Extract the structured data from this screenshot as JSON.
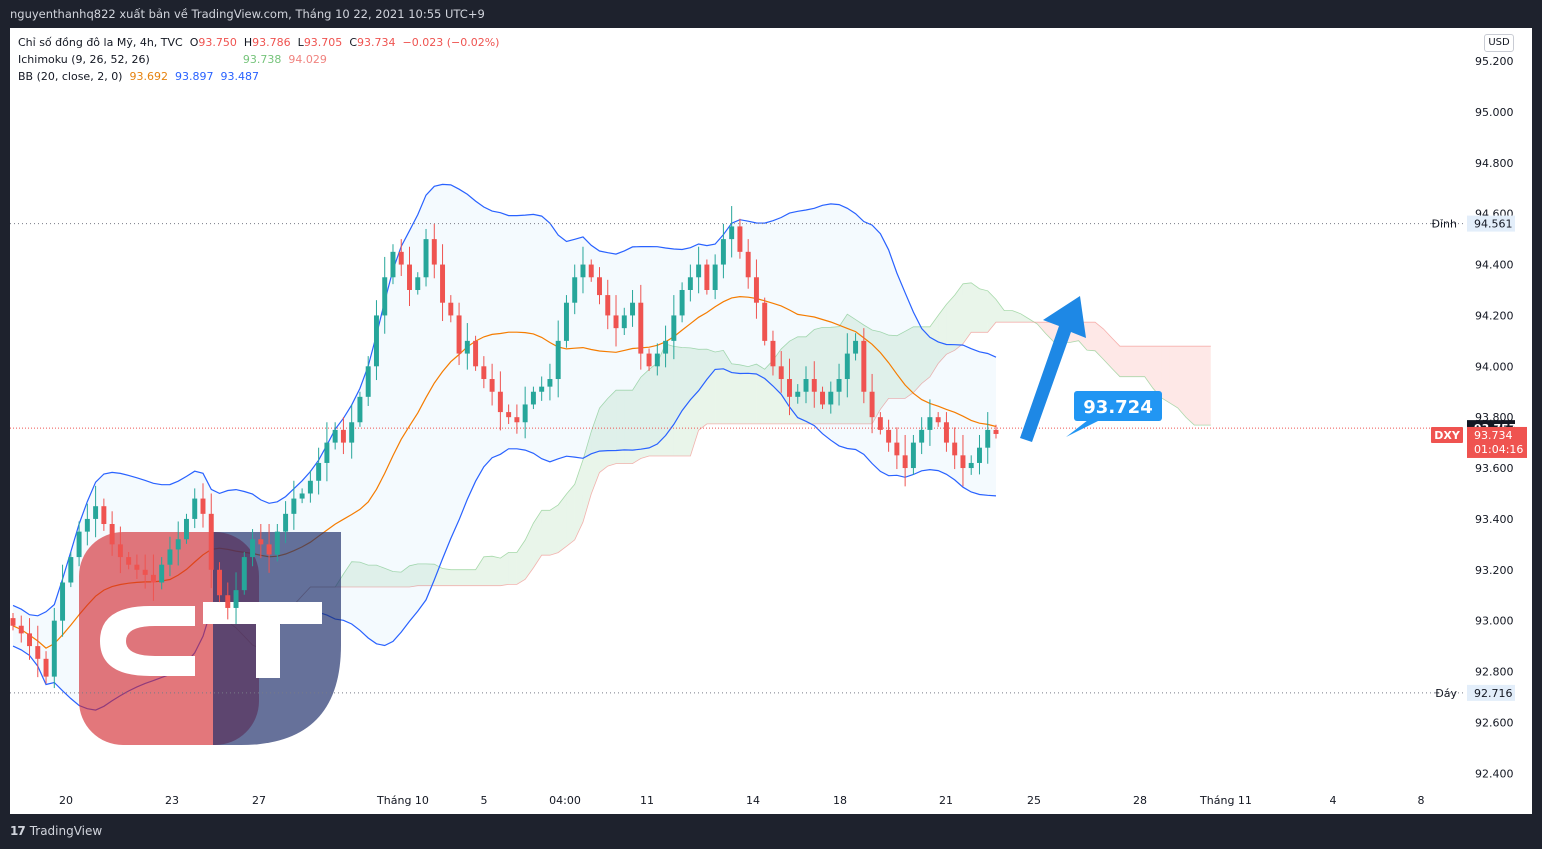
{
  "header": {
    "published_by": "nguyenthanhq822 xuất bản về TradingView.com, Tháng 10 22, 2021 10:55 UTC+9"
  },
  "legend": {
    "symbol": "Chỉ số đồng đô la Mỹ, 4h, TVC",
    "o_label": "O",
    "o": "93.750",
    "h_label": "H",
    "h": "93.786",
    "l_label": "L",
    "l": "93.705",
    "c_label": "C",
    "c": "93.734",
    "change": "−0.023 (−0.02%)",
    "ichimoku_label": "Ichimoku (9, 26, 52, 26)",
    "ichimoku_values": [
      "93.738",
      "94.029"
    ],
    "bb_label": "BB (20, close, 2, 0)",
    "bb_values": [
      "93.692",
      "93.897",
      "93.487"
    ]
  },
  "currency_badge": "USD",
  "footer": {
    "brand": "TradingView",
    "brand_mark": "17"
  },
  "chart_data": {
    "type": "candlestick",
    "y_axis_ticks": [
      "95.200",
      "95.000",
      "94.800",
      "94.600",
      "94.400",
      "94.200",
      "94.000",
      "93.800",
      "93.600",
      "93.400",
      "93.200",
      "93.000",
      "92.800",
      "92.600",
      "92.400"
    ],
    "ylim": [
      92.35,
      95.33
    ],
    "x_axis_ticks": [
      "20",
      "23",
      "27",
      "Tháng 10",
      "5",
      "04:00",
      "11",
      "14",
      "18",
      "21",
      "25",
      "28",
      "Tháng 11",
      "4",
      "8"
    ],
    "level_lines": [
      {
        "label": "Đỉnh",
        "value": "94.561"
      },
      {
        "label": "Đáy",
        "value": "92.716"
      }
    ],
    "last_close_marker": {
      "value": "93.757"
    },
    "price_tag": {
      "symbol": "DXY",
      "value": "93.734",
      "countdown": "01:04:16"
    },
    "forecast_callout": {
      "value": "93.724"
    },
    "closes": [
      92.98,
      92.95,
      92.9,
      92.85,
      92.78,
      93.0,
      93.15,
      93.25,
      93.35,
      93.4,
      93.45,
      93.38,
      93.3,
      93.25,
      93.22,
      93.2,
      93.18,
      93.15,
      93.22,
      93.28,
      93.32,
      93.4,
      93.48,
      93.42,
      93.2,
      93.1,
      93.05,
      93.12,
      93.25,
      93.32,
      93.3,
      93.26,
      93.35,
      93.42,
      93.48,
      93.5,
      93.55,
      93.62,
      93.7,
      93.75,
      93.7,
      93.78,
      93.88,
      94.0,
      94.2,
      94.35,
      94.45,
      94.4,
      94.3,
      94.35,
      94.5,
      94.4,
      94.25,
      94.2,
      94.05,
      94.1,
      94.0,
      93.95,
      93.9,
      93.82,
      93.8,
      93.78,
      93.85,
      93.9,
      93.92,
      93.95,
      94.1,
      94.25,
      94.35,
      94.4,
      94.35,
      94.28,
      94.2,
      94.15,
      94.2,
      94.25,
      94.05,
      94.0,
      94.05,
      94.1,
      94.2,
      94.3,
      94.35,
      94.4,
      94.3,
      94.4,
      94.5,
      94.55,
      94.45,
      94.35,
      94.25,
      94.1,
      94.0,
      93.95,
      93.88,
      93.9,
      93.95,
      93.9,
      93.85,
      93.9,
      93.95,
      94.05,
      94.1,
      93.9,
      93.8,
      93.75,
      93.7,
      93.65,
      93.6,
      93.7,
      93.75,
      93.8,
      93.78,
      93.7,
      93.65,
      93.6,
      93.62,
      93.68,
      93.75,
      93.734
    ]
  }
}
